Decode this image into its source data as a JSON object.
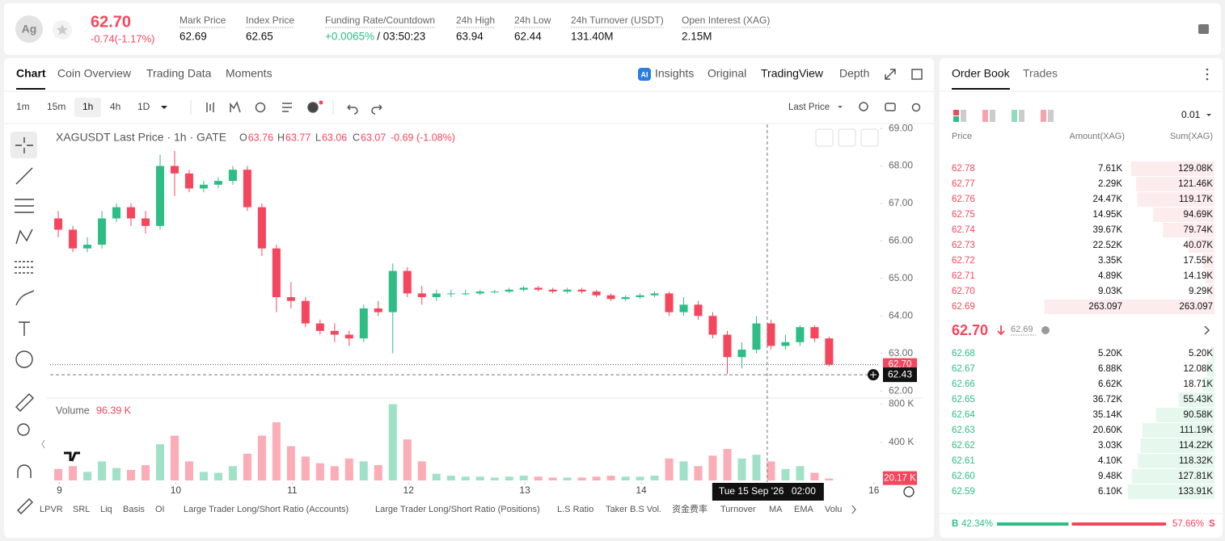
{
  "header": {
    "symbol": "Ag",
    "price": "62.70",
    "change": "-0.74(-1.17%)",
    "stats": [
      {
        "label": "Mark Price",
        "value": "62.69"
      },
      {
        "label": "Index Price",
        "value": "62.65"
      },
      {
        "label": "Funding Rate/Countdown",
        "value": "+0.0065%",
        "extra": "/ 03:50:23"
      },
      {
        "label": "24h High",
        "value": "63.94"
      },
      {
        "label": "24h Low",
        "value": "62.44"
      },
      {
        "label": "24h Turnover (USDT)",
        "value": "131.40M"
      },
      {
        "label": "Open Interest (XAG)",
        "value": "2.15M"
      }
    ]
  },
  "tabs": [
    "Chart",
    "Coin Overview",
    "Trading Data",
    "Moments"
  ],
  "views": [
    "Insights",
    "Original",
    "TradingView",
    "Depth"
  ],
  "intervals": [
    "1m",
    "15m",
    "1h",
    "4h",
    "1D"
  ],
  "price_source": "Last Price",
  "chart_data": {
    "type": "candlestick",
    "title": "XAGUSDT Last Price · 1h · GATE",
    "ohlc": [
      {
        "label": "O",
        "value": "63.76"
      },
      {
        "label": "H",
        "value": "63.77"
      },
      {
        "label": "L",
        "value": "63.06"
      },
      {
        "label": "C",
        "value": "63.07"
      }
    ],
    "change": "-0.69 (-1.08%)",
    "up_color": "#2ebd85",
    "down_color": "#f6465d",
    "x": [
      8.99,
      9.115,
      9.24,
      9.365,
      9.49,
      9.615,
      9.74,
      9.865,
      9.99,
      10.115,
      10.24,
      10.365,
      10.49,
      10.615,
      10.74,
      10.865,
      10.99,
      11.115,
      11.24,
      11.365,
      11.49,
      11.615,
      11.74,
      11.865,
      11.99,
      12.115,
      12.24,
      12.365,
      12.49,
      12.615,
      12.74,
      12.865,
      12.99,
      13.115,
      13.24,
      13.365,
      13.49,
      13.615,
      13.74,
      13.865,
      13.99,
      14.115,
      14.24,
      14.365,
      14.49,
      14.615,
      14.74,
      14.865,
      14.99,
      15.115,
      15.24,
      15.365,
      15.49,
      15.615
    ],
    "open": [
      66.6,
      66.3,
      65.8,
      65.9,
      66.6,
      66.9,
      66.6,
      66.4,
      68.0,
      67.8,
      67.4,
      67.5,
      67.6,
      67.9,
      66.9,
      65.8,
      64.5,
      64.4,
      63.8,
      63.6,
      63.5,
      63.4,
      64.2,
      64.1,
      65.2,
      64.6,
      64.5,
      64.6,
      64.6,
      64.6,
      64.65,
      64.65,
      64.7,
      64.75,
      64.7,
      64.65,
      64.7,
      64.65,
      64.55,
      64.45,
      64.5,
      64.55,
      64.6,
      64.1,
      64.3,
      64.0,
      63.5,
      62.9,
      63.1,
      63.8,
      63.2,
      63.3,
      63.7,
      63.4
    ],
    "high": [
      66.8,
      66.4,
      66.1,
      66.8,
      67.0,
      67.0,
      66.8,
      68.3,
      68.4,
      67.9,
      67.6,
      67.7,
      68.0,
      68.0,
      67.0,
      65.9,
      64.9,
      64.5,
      63.9,
      63.8,
      63.6,
      64.3,
      64.4,
      65.4,
      65.3,
      64.8,
      64.7,
      64.7,
      64.7,
      64.7,
      64.7,
      64.75,
      64.8,
      64.8,
      64.75,
      64.75,
      64.75,
      64.7,
      64.6,
      64.55,
      64.6,
      64.65,
      64.65,
      64.5,
      64.4,
      64.1,
      63.6,
      63.3,
      64.0,
      63.9,
      63.5,
      63.75,
      63.75,
      63.45
    ],
    "low": [
      66.1,
      65.7,
      65.7,
      65.8,
      66.5,
      66.4,
      66.2,
      66.3,
      67.2,
      67.3,
      67.3,
      67.4,
      67.5,
      66.8,
      65.6,
      64.1,
      64.2,
      63.7,
      63.5,
      63.3,
      63.2,
      63.3,
      64.0,
      63.0,
      64.5,
      64.3,
      64.4,
      64.5,
      64.55,
      64.55,
      64.6,
      64.6,
      64.65,
      64.65,
      64.6,
      64.6,
      64.6,
      64.5,
      64.4,
      64.4,
      64.45,
      64.5,
      64.0,
      64.0,
      63.9,
      63.4,
      62.45,
      62.6,
      63.0,
      63.1,
      63.1,
      63.2,
      63.3,
      62.65
    ],
    "close": [
      66.3,
      65.8,
      65.9,
      66.6,
      66.9,
      66.6,
      66.4,
      68.0,
      67.8,
      67.4,
      67.5,
      67.6,
      67.9,
      66.9,
      65.8,
      64.5,
      64.4,
      63.8,
      63.6,
      63.5,
      63.4,
      64.2,
      64.1,
      65.2,
      64.6,
      64.5,
      64.6,
      64.6,
      64.6,
      64.65,
      64.65,
      64.7,
      64.75,
      64.7,
      64.65,
      64.7,
      64.65,
      64.55,
      64.45,
      64.5,
      64.55,
      64.6,
      64.1,
      64.3,
      64.0,
      63.5,
      62.9,
      63.1,
      63.8,
      63.2,
      63.3,
      63.7,
      63.4,
      62.7
    ],
    "volume": [
      120,
      150,
      90,
      200,
      130,
      110,
      160,
      380,
      470,
      200,
      90,
      80,
      150,
      280,
      470,
      610,
      360,
      250,
      180,
      150,
      230,
      200,
      160,
      800,
      430,
      200,
      70,
      50,
      40,
      40,
      30,
      40,
      50,
      40,
      30,
      30,
      30,
      40,
      50,
      40,
      40,
      50,
      230,
      200,
      150,
      260,
      330,
      230,
      270,
      200,
      120,
      150,
      80,
      20.17
    ],
    "xlim": [
      8.92,
      16.05
    ],
    "xticks": [
      9,
      10,
      11,
      12,
      13,
      14,
      16
    ],
    "ylim": [
      61.83,
      69.11
    ],
    "yticks": [
      {
        "value": 62,
        "label": "62.00"
      },
      {
        "value": 63,
        "label": "63.00"
      },
      {
        "value": 64,
        "label": "64.00"
      },
      {
        "value": 65,
        "label": "65.00"
      },
      {
        "value": 66,
        "label": "66.00"
      },
      {
        "value": 67,
        "label": "67.00"
      },
      {
        "value": 68,
        "label": "68.00"
      },
      {
        "value": 69,
        "label": "69.00"
      }
    ],
    "volume_ylim": [
      0,
      830
    ],
    "volume_yticks": [
      {
        "value": 400,
        "label": "400 K"
      },
      {
        "value": 800,
        "label": "800 K"
      }
    ],
    "volume_title": "Volume",
    "volume_value": "96.39 K",
    "last_price": {
      "value": 62.7,
      "label": "62.70"
    },
    "volume_tag": {
      "value": 20.17,
      "label": "20.17 K"
    },
    "crosshair": {
      "x": 15.083,
      "price": {
        "value": 62.43,
        "label": "62.43"
      },
      "date": "Tue 15 Sep '26",
      "time": "02:00"
    },
    "grid": false
  },
  "indicators": [
    "LPVR",
    "SRL",
    "Liq",
    "Basis",
    "OI",
    "Large Trader Long/Short Ratio (Accounts)",
    "Large Trader Long/Short Ratio (Positions)",
    "L.S Ratio",
    "Taker B.S Vol.",
    "资金费率",
    "Turnover",
    "MA",
    "EMA",
    "Volu"
  ],
  "order_book": {
    "tabs": [
      "Order Book",
      "Trades"
    ],
    "precision": "0.01",
    "columns": [
      "Price",
      "Amount(XAG)",
      "Sum(XAG)"
    ],
    "asks": [
      {
        "price": "62.78",
        "amount": "7.61K",
        "sum": {
          "value": 129.08,
          "label": "129.08K"
        }
      },
      {
        "price": "62.77",
        "amount": "2.29K",
        "sum": {
          "value": 121.46,
          "label": "121.46K"
        }
      },
      {
        "price": "62.76",
        "amount": "24.47K",
        "sum": {
          "value": 119.17,
          "label": "119.17K"
        }
      },
      {
        "price": "62.75",
        "amount": "14.95K",
        "sum": {
          "value": 94.69,
          "label": "94.69K"
        }
      },
      {
        "price": "62.74",
        "amount": "39.67K",
        "sum": {
          "value": 79.74,
          "label": "79.74K"
        }
      },
      {
        "price": "62.73",
        "amount": "22.52K",
        "sum": {
          "value": 40.07,
          "label": "40.07K"
        }
      },
      {
        "price": "62.72",
        "amount": "3.35K",
        "sum": {
          "value": 17.55,
          "label": "17.55K"
        }
      },
      {
        "price": "62.71",
        "amount": "4.89K",
        "sum": {
          "value": 14.19,
          "label": "14.19K"
        }
      },
      {
        "price": "62.70",
        "amount": "9.03K",
        "sum": {
          "value": 9.29,
          "label": "9.29K"
        }
      },
      {
        "price": "62.69",
        "amount": "263.097",
        "sum": {
          "value": 263.097,
          "label": "263.097"
        }
      }
    ],
    "mid": {
      "price": "62.70",
      "mark": "62.69"
    },
    "bids": [
      {
        "price": "62.68",
        "amount": "5.20K",
        "sum": {
          "value": 5.2,
          "label": "5.20K"
        }
      },
      {
        "price": "62.67",
        "amount": "6.88K",
        "sum": {
          "value": 12.08,
          "label": "12.08K"
        }
      },
      {
        "price": "62.66",
        "amount": "6.62K",
        "sum": {
          "value": 18.71,
          "label": "18.71K"
        }
      },
      {
        "price": "62.65",
        "amount": "36.72K",
        "sum": {
          "value": 55.43,
          "label": "55.43K"
        }
      },
      {
        "price": "62.64",
        "amount": "35.14K",
        "sum": {
          "value": 90.58,
          "label": "90.58K"
        }
      },
      {
        "price": "62.63",
        "amount": "20.60K",
        "sum": {
          "value": 111.19,
          "label": "111.19K"
        }
      },
      {
        "price": "62.62",
        "amount": "3.03K",
        "sum": {
          "value": 114.22,
          "label": "114.22K"
        }
      },
      {
        "price": "62.61",
        "amount": "4.10K",
        "sum": {
          "value": 118.32,
          "label": "118.32K"
        }
      },
      {
        "price": "62.60",
        "amount": "9.48K",
        "sum": {
          "value": 127.81,
          "label": "127.81K"
        }
      },
      {
        "price": "62.59",
        "amount": "6.10K",
        "sum": {
          "value": 133.91,
          "label": "133.91K"
        }
      }
    ],
    "ratio": {
      "buy_label": "B",
      "buy": {
        "value": 42.34,
        "label": "42.34%"
      },
      "sell": {
        "value": 57.66,
        "label": "57.66%"
      },
      "sell_label": "S"
    }
  }
}
